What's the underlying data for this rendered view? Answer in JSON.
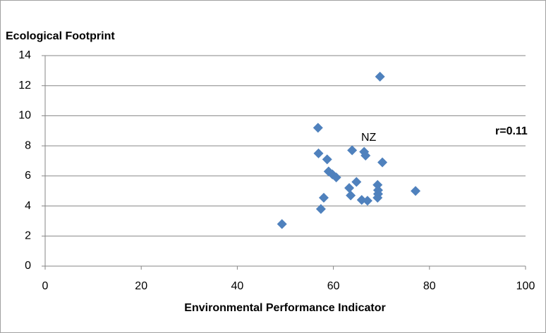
{
  "chart_data": {
    "type": "scatter",
    "y_label": "Ecological Footprint",
    "x_label": "Environmental Performance Indicator",
    "annotations": [
      "NZ",
      "r=0.11"
    ],
    "color": "#4f81bd",
    "grid": true,
    "xlim": [
      0,
      100
    ],
    "xticks": [
      0,
      20,
      40,
      60,
      80,
      100
    ],
    "ylim": [
      0,
      14
    ],
    "yticks": [
      0,
      2,
      4,
      6,
      8,
      10,
      12,
      14
    ],
    "x": [
      69.7,
      56.8,
      56.9,
      58.7,
      63.9,
      66.4,
      66.7,
      70.2,
      59.0,
      59.8,
      60.6,
      64.8,
      63.3,
      69.2,
      69.3,
      69.3,
      77.1,
      63.6,
      58.0,
      65.9,
      67.1,
      69.2,
      57.4,
      49.3
    ],
    "values": [
      12.6,
      9.2,
      7.5,
      7.1,
      7.7,
      7.6,
      7.35,
      6.9,
      6.3,
      6.1,
      5.9,
      5.6,
      5.2,
      5.4,
      5.05,
      4.8,
      5.0,
      4.7,
      4.55,
      4.4,
      4.35,
      4.55,
      3.8,
      2.8
    ]
  }
}
